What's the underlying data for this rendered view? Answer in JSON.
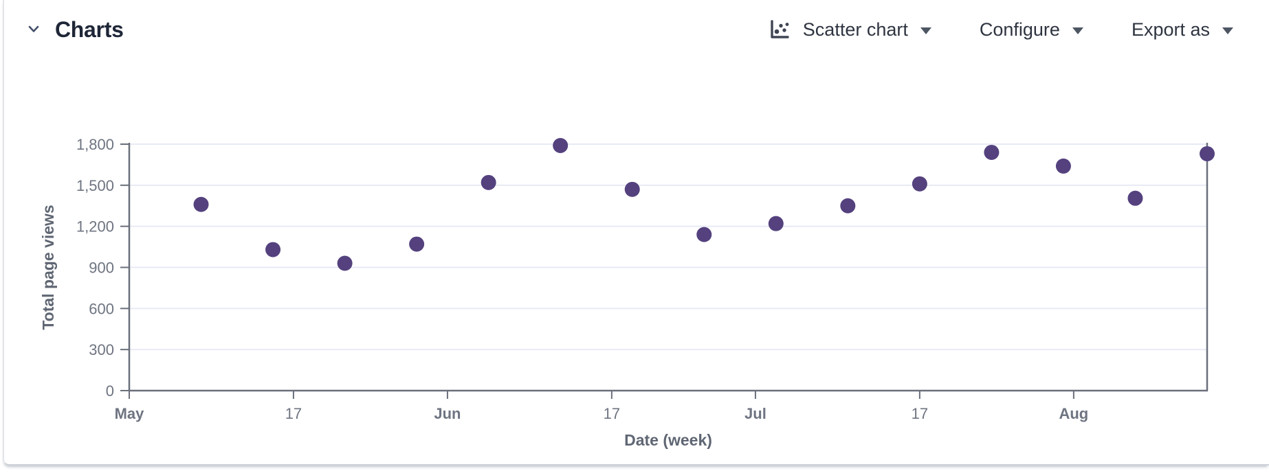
{
  "panel": {
    "title": "Charts",
    "controls": {
      "chart_type": {
        "label": "Scatter chart"
      },
      "configure": {
        "label": "Configure"
      },
      "export": {
        "label": "Export as"
      }
    }
  },
  "chart_data": {
    "type": "scatter",
    "title": "",
    "xlabel": "Date (week)",
    "ylabel": "Total page views",
    "ylim": [
      0,
      1800
    ],
    "y_ticks": [
      0,
      300,
      600,
      900,
      1200,
      1500,
      1800
    ],
    "y_tick_labels": [
      "0",
      "300",
      "600",
      "900",
      "1,200",
      "1,500",
      "1,800"
    ],
    "x_domain_days": [
      0,
      105
    ],
    "x_ticks": [
      {
        "label": "May",
        "bold": true,
        "day": 0
      },
      {
        "label": "17",
        "bold": false,
        "day": 16
      },
      {
        "label": "Jun",
        "bold": true,
        "day": 31
      },
      {
        "label": "17",
        "bold": false,
        "day": 47
      },
      {
        "label": "Jul",
        "bold": true,
        "day": 61
      },
      {
        "label": "17",
        "bold": false,
        "day": 77
      },
      {
        "label": "Aug",
        "bold": true,
        "day": 92
      }
    ],
    "points": [
      {
        "date": "May 8",
        "day": 7,
        "value": 1360
      },
      {
        "date": "May 15",
        "day": 14,
        "value": 1030
      },
      {
        "date": "May 22",
        "day": 21,
        "value": 930
      },
      {
        "date": "May 29",
        "day": 28,
        "value": 1070
      },
      {
        "date": "Jun 5",
        "day": 35,
        "value": 1520
      },
      {
        "date": "Jun 12",
        "day": 42,
        "value": 1790
      },
      {
        "date": "Jun 19",
        "day": 49,
        "value": 1470
      },
      {
        "date": "Jun 26",
        "day": 56,
        "value": 1140
      },
      {
        "date": "Jul 3",
        "day": 63,
        "value": 1220
      },
      {
        "date": "Jul 10",
        "day": 70,
        "value": 1350
      },
      {
        "date": "Jul 17",
        "day": 77,
        "value": 1510
      },
      {
        "date": "Jul 24",
        "day": 84,
        "value": 1740
      },
      {
        "date": "Jul 31",
        "day": 91,
        "value": 1640
      },
      {
        "date": "Aug 7",
        "day": 98,
        "value": 1405
      },
      {
        "date": "Aug 14",
        "day": 105,
        "value": 1730
      }
    ],
    "grid_on": true,
    "legend": "none",
    "colors": {
      "point": "#54417e",
      "grid": "#e8ebf5",
      "axis": "#696f7b",
      "tick_label": "#6e7481",
      "axis_title": "#5f6673"
    }
  }
}
